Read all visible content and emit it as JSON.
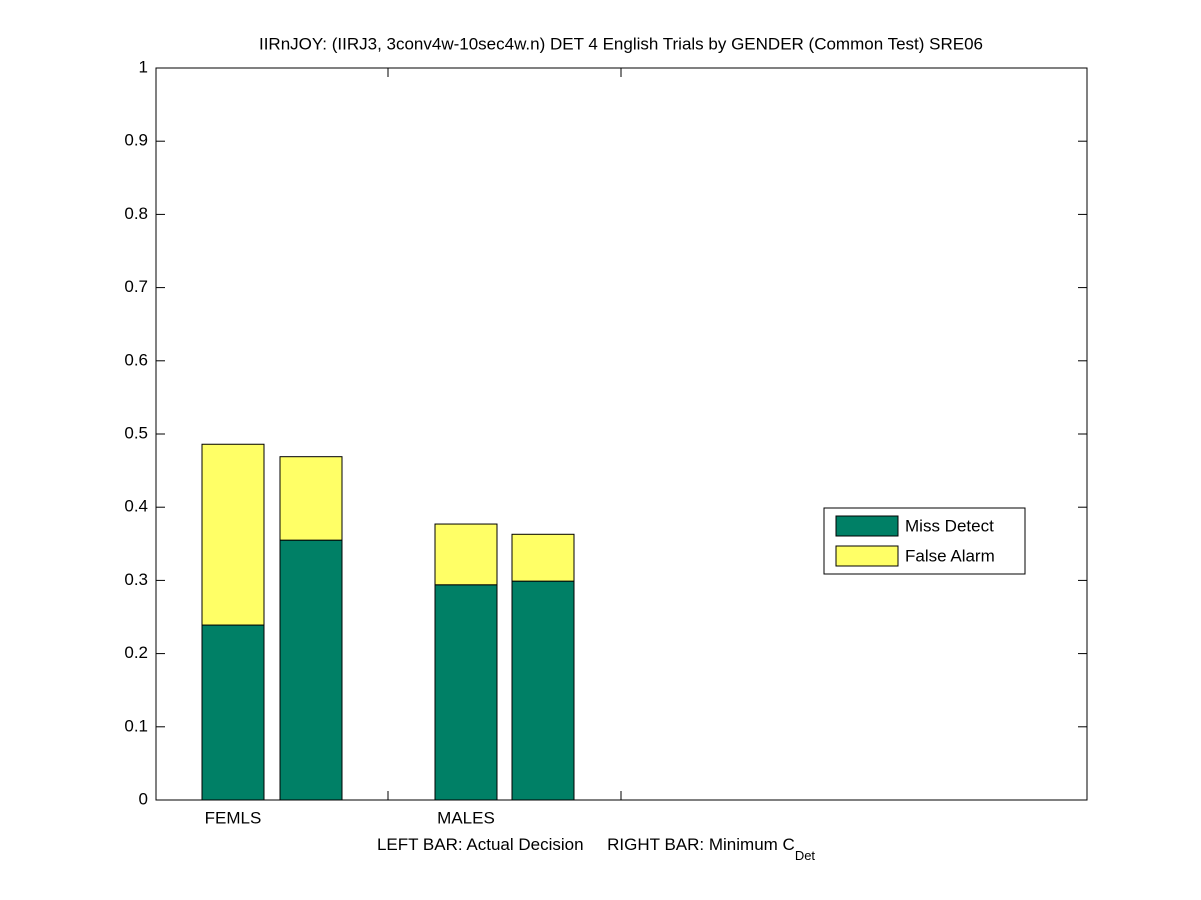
{
  "chart_data": {
    "type": "stacked_bar",
    "title": "IIRnJOY: (IIRJ3, 3conv4w-10sec4w.n) DET 4 English Trials by GENDER (Common Test) SRE06",
    "xlabel": "LEFT BAR: Actual Decision     RIGHT BAR: Minimum C",
    "xlabel_subscript": "Det",
    "categories": [
      "FEMLS",
      null,
      "MALES",
      null
    ],
    "series": [
      {
        "name": "Miss Detect",
        "color": "#008066",
        "values": [
          0.239,
          0.355,
          0.294,
          0.299
        ]
      },
      {
        "name": "False Alarm",
        "color": "#ffff66",
        "values": [
          0.247,
          0.114,
          0.083,
          0.064
        ]
      }
    ],
    "ylim": [
      0,
      1
    ],
    "yticks": [
      0,
      0.1,
      0.2,
      0.3,
      0.4,
      0.5,
      0.6,
      0.7,
      0.8,
      0.9,
      1
    ],
    "legend": "right"
  }
}
